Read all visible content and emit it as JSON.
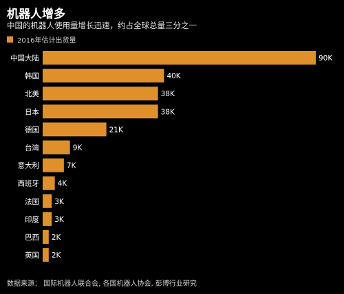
{
  "title": "机器人增多",
  "subtitle": "中国的机器人使用量增长迅速，约占全球总量三分之一",
  "legend": "2016年估计出货量",
  "source": "数据来源：  国际机器人联合会,  各国机器人协会,  彭博行业研究",
  "colors": {
    "bar": "#e0902a",
    "background": "#000000",
    "text": "#ffffff"
  },
  "chart_data": {
    "type": "bar",
    "orientation": "horizontal",
    "title": "机器人增多",
    "categories": [
      "中国大陆",
      "韩国",
      "北美",
      "日本",
      "德国",
      "台湾",
      "意大利",
      "西班牙",
      "法国",
      "印度",
      "巴西",
      "英国"
    ],
    "series": [
      {
        "name": "2016年估计出货量",
        "values": [
          90000,
          40000,
          38000,
          38000,
          21000,
          9000,
          7000,
          4000,
          3000,
          3000,
          2000,
          2000
        ],
        "labels": [
          "90K",
          "40K",
          "38K",
          "38K",
          "21K",
          "9K",
          "7K",
          "4K",
          "3K",
          "3K",
          "2K",
          "2K"
        ]
      }
    ],
    "xlim": [
      0,
      90000
    ],
    "grid": false,
    "legend_position": "top-left"
  }
}
